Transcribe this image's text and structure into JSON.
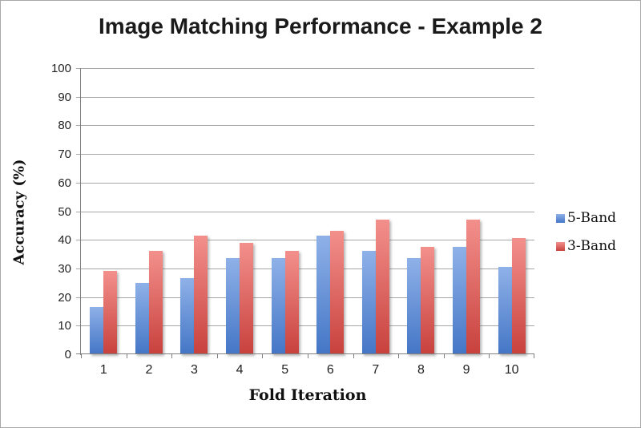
{
  "window": {
    "background": "#ffffff",
    "border_color": "#a8a8a8",
    "gridline_color": "#a6a6a6",
    "axis_color": "#808080"
  },
  "chart_data": {
    "type": "bar",
    "title": "Image Matching Performance - Example 2",
    "xlabel": "Fold Iteration",
    "ylabel": "Accuracy (%)",
    "ylim": [
      0,
      100
    ],
    "yticks": [
      0,
      10,
      20,
      30,
      40,
      50,
      60,
      70,
      80,
      90,
      100
    ],
    "grid": "horizontal",
    "legend_position": "right",
    "categories": [
      "1",
      "2",
      "3",
      "4",
      "5",
      "6",
      "7",
      "8",
      "9",
      "10"
    ],
    "series": [
      {
        "name": "5-Band",
        "color_top": "#8fb1e8",
        "color_bottom": "#4476c6",
        "values": [
          16.5,
          25,
          26.5,
          33.5,
          33.5,
          41.5,
          36,
          33.5,
          37.5,
          30.5
        ]
      },
      {
        "name": "3-Band",
        "color_top": "#f3908c",
        "color_bottom": "#c8413d",
        "values": [
          29,
          36,
          41.5,
          39,
          36,
          43,
          47,
          37.5,
          47,
          40.5
        ]
      }
    ]
  }
}
